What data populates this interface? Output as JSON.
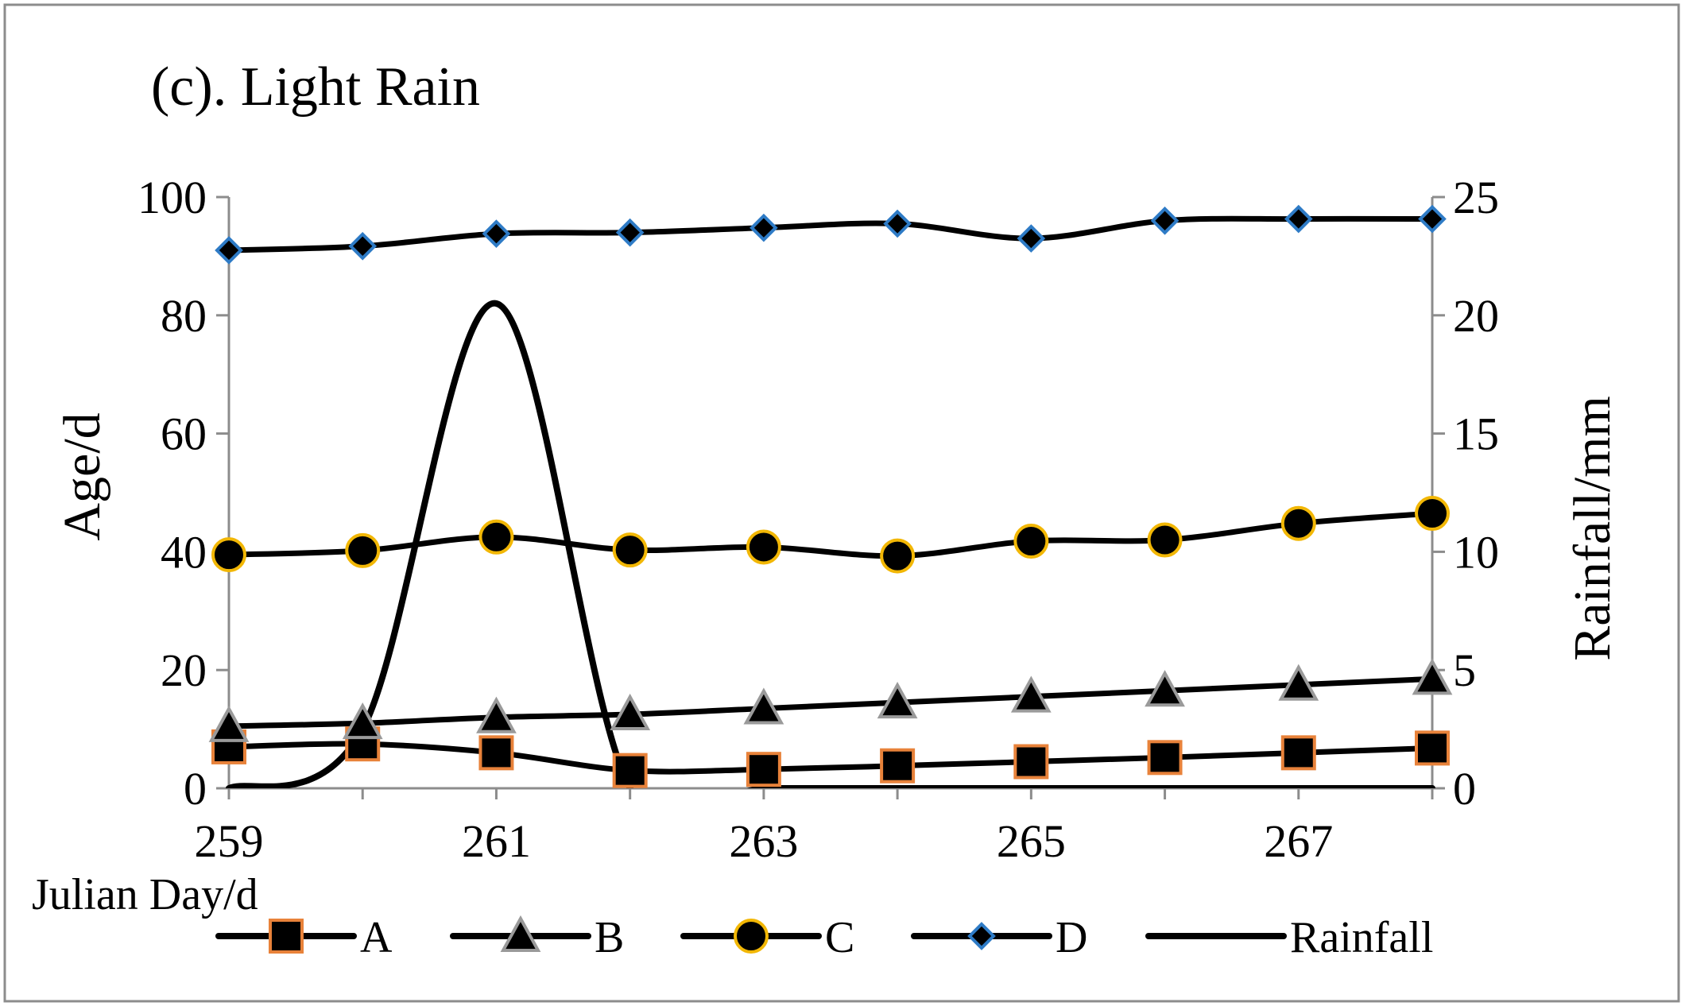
{
  "chart_data": {
    "type": "line",
    "title": "(c). Light Rain",
    "xlabel": "Julian Day/d",
    "ylabel": "Age/d",
    "y2label": "Rainfall/mm",
    "xlim": [
      259,
      268
    ],
    "ylim": [
      0,
      100
    ],
    "y2lim": [
      0,
      25
    ],
    "x_ticks": [
      259,
      261,
      263,
      265,
      267
    ],
    "y_ticks": [
      0,
      20,
      40,
      60,
      80,
      100
    ],
    "y2_ticks": [
      0,
      5,
      10,
      15,
      20,
      25
    ],
    "x": [
      259,
      260,
      261,
      262,
      263,
      264,
      265,
      266,
      267,
      268
    ],
    "series": [
      {
        "name": "A",
        "axis": "left",
        "marker": "square",
        "marker_fill": "#000000",
        "marker_edge": "#e8823a",
        "values": [
          7,
          7.5,
          6,
          3,
          3.2,
          3.8,
          4.5,
          5.2,
          6,
          6.8
        ]
      },
      {
        "name": "B",
        "axis": "left",
        "marker": "triangle",
        "marker_fill": "#000000",
        "marker_edge": "#9a9a9a",
        "values": [
          10.5,
          11,
          12,
          12.5,
          13.5,
          14.5,
          15.5,
          16.5,
          17.5,
          18.5
        ]
      },
      {
        "name": "C",
        "axis": "left",
        "marker": "circle",
        "marker_fill": "#000000",
        "marker_edge": "#f2b705",
        "values": [
          39.5,
          40.2,
          42.5,
          40.3,
          40.8,
          39.3,
          41.8,
          42,
          44.8,
          46.5
        ]
      },
      {
        "name": "D",
        "axis": "left",
        "marker": "diamond",
        "marker_fill": "#000000",
        "marker_edge": "#2e7bc6",
        "values": [
          91,
          91.7,
          93.8,
          94,
          94.8,
          95.5,
          93,
          96,
          96.3,
          96.3
        ]
      },
      {
        "name": "Rainfall",
        "axis": "right",
        "marker": "none",
        "values": [
          0,
          2.5,
          20.5,
          0,
          0,
          0,
          0,
          0,
          0,
          0
        ]
      }
    ],
    "legend_position": "bottom"
  }
}
